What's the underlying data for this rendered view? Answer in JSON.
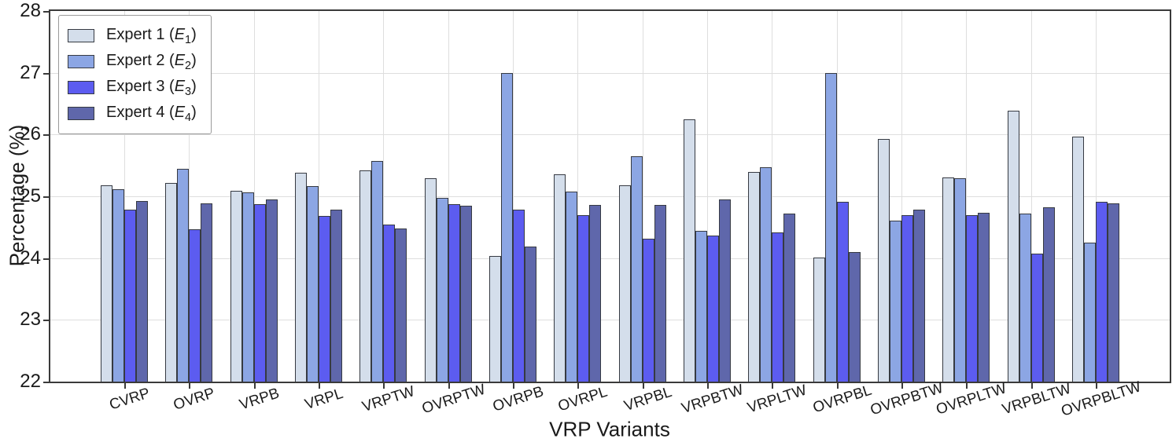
{
  "chart_data": {
    "type": "bar",
    "title": "",
    "xlabel": "VRP Variants",
    "ylabel": "Percentage (%)",
    "ylim": [
      22,
      28
    ],
    "yticks": [
      22,
      23,
      24,
      25,
      26,
      27,
      28
    ],
    "grid": true,
    "legend_position": "upper-left",
    "categories": [
      "CVRP",
      "OVRP",
      "VRPB",
      "VRPL",
      "VRPTW",
      "OVRPTW",
      "OVRPB",
      "OVRPL",
      "VRPBL",
      "VRPBTW",
      "VRPLTW",
      "OVRPBL",
      "OVRPBTW",
      "OVRPLTW",
      "VRPBLTW",
      "OVRPBLTW"
    ],
    "series": [
      {
        "name": "Expert 1",
        "legend": {
          "prefix": "Expert 1 (",
          "var": "E",
          "sub": "1",
          "suffix": ")"
        },
        "color": "#d4deeb",
        "values": [
          25.18,
          25.21,
          25.09,
          25.38,
          25.42,
          25.29,
          24.04,
          25.35,
          25.18,
          26.25,
          25.39,
          24.01,
          25.93,
          25.31,
          26.39,
          25.97
        ]
      },
      {
        "name": "Expert 2",
        "legend": {
          "prefix": "Expert 2 (",
          "var": "E",
          "sub": "2",
          "suffix": ")"
        },
        "color": "#8ca6e4",
        "values": [
          25.12,
          25.45,
          25.06,
          25.17,
          25.57,
          24.97,
          27.0,
          25.08,
          25.65,
          24.44,
          25.47,
          27.0,
          24.6,
          25.29,
          24.72,
          24.25
        ]
      },
      {
        "name": "Expert 3",
        "legend": {
          "prefix": "Expert 3 (",
          "var": "E",
          "sub": "3",
          "suffix": ")"
        },
        "color": "#5c5cf0",
        "values": [
          24.79,
          24.46,
          24.87,
          24.68,
          24.54,
          24.87,
          24.78,
          24.7,
          24.31,
          24.37,
          24.41,
          24.91,
          24.69,
          24.69,
          24.07,
          24.91
        ]
      },
      {
        "name": "Expert 4",
        "legend": {
          "prefix": "Expert 4 (",
          "var": "E",
          "sub": "4",
          "suffix": ")"
        },
        "color": "#5f67ab",
        "values": [
          24.92,
          24.89,
          24.95,
          24.78,
          24.48,
          24.85,
          24.19,
          24.86,
          24.86,
          24.95,
          24.72,
          24.1,
          24.79,
          24.73,
          24.82,
          24.88
        ]
      }
    ],
    "colors": {
      "bar_edge": "#363a42",
      "grid": "#dedede",
      "spine": "#3a3a3a",
      "text": "#1a1a1a"
    }
  }
}
